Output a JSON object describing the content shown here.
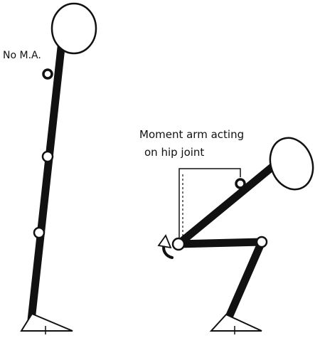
{
  "labels": {
    "standing": "No M.A.",
    "squat_line1": "Moment arm acting",
    "squat_line2": "on hip joint"
  },
  "colors": {
    "ink": "#111111",
    "fill": "#ffffff"
  }
}
